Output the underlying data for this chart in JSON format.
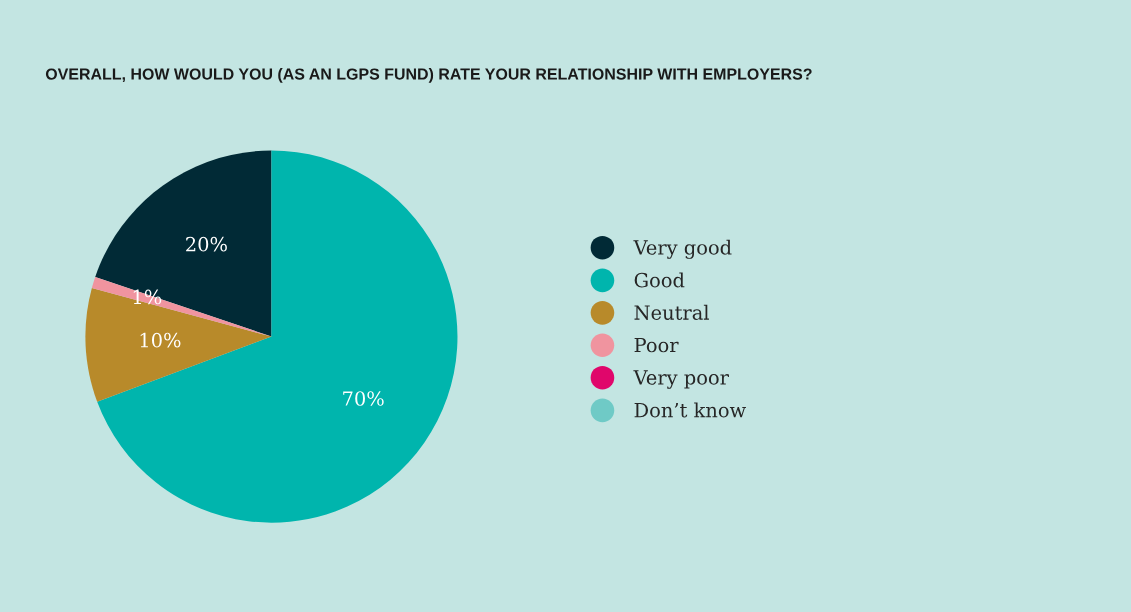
{
  "chart_data": {
    "type": "pie",
    "title": "OVERALL, HOW WOULD YOU (AS AN LGPS FUND) RATE YOUR RELATIONSHIP WITH EMPLOYERS?",
    "categories": [
      "Very good",
      "Good",
      "Neutral",
      "Poor",
      "Very poor",
      "Don’t know"
    ],
    "values": [
      20,
      70,
      10,
      1,
      0,
      0
    ],
    "value_labels": [
      "20%",
      "70%",
      "10%",
      "1%",
      null,
      null
    ],
    "colors": [
      "#012a36",
      "#00b5ad",
      "#b88a2a",
      "#f0949f",
      "#e0066b",
      "#6fcac6"
    ],
    "legend": "right"
  }
}
